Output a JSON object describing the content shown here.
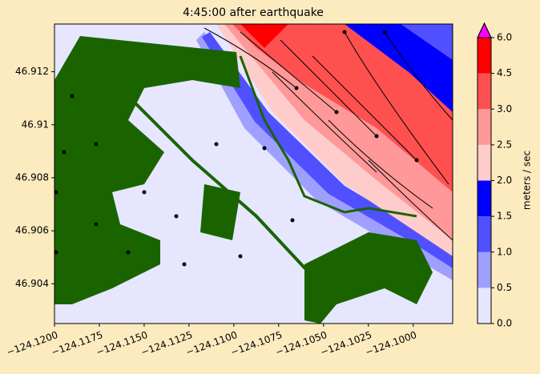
{
  "chart_data": {
    "type": "contour",
    "title": "4:45:00 after earthquake",
    "xlim": [
      -124.12,
      -124.0978
    ],
    "xticks": [
      {
        "value": -124.12,
        "label": "−124.1200"
      },
      {
        "value": -124.1175,
        "label": "−124.1175"
      },
      {
        "value": -124.115,
        "label": "−124.1150"
      },
      {
        "value": -124.1125,
        "label": "−124.1125"
      },
      {
        "value": -124.11,
        "label": "−124.1100"
      },
      {
        "value": -124.1075,
        "label": "−124.1075"
      },
      {
        "value": -124.105,
        "label": "−124.1050"
      },
      {
        "value": -124.1025,
        "label": "−124.1025"
      },
      {
        "value": -124.1,
        "label": "−124.1000"
      }
    ],
    "ylim": [
      46.9025,
      46.9138
    ],
    "yticks": [
      46.904,
      46.906,
      46.908,
      46.91,
      46.912
    ],
    "colorbar": {
      "label": "meters / sec",
      "ticks": [
        {
          "value": 0,
          "label": "0.0"
        },
        {
          "value": 0.5,
          "label": "0.5"
        },
        {
          "value": 1,
          "label": "1.0"
        },
        {
          "value": 1.5,
          "label": "1.5"
        },
        {
          "value": 2,
          "label": "2.0"
        },
        {
          "value": 2.5,
          "label": "2.5"
        },
        {
          "value": 3,
          "label": "3.0"
        },
        {
          "value": 4.5,
          "label": "4.5"
        },
        {
          "value": 6,
          "label": "6.0"
        }
      ],
      "colors": [
        "#e6e6ff",
        "#9f9fff",
        "#5050ff",
        "#0000ff",
        "#ffcccc",
        "#ff9999",
        "#ff5050",
        "#ff0000"
      ],
      "extend_color": "#ff00ff"
    }
  }
}
